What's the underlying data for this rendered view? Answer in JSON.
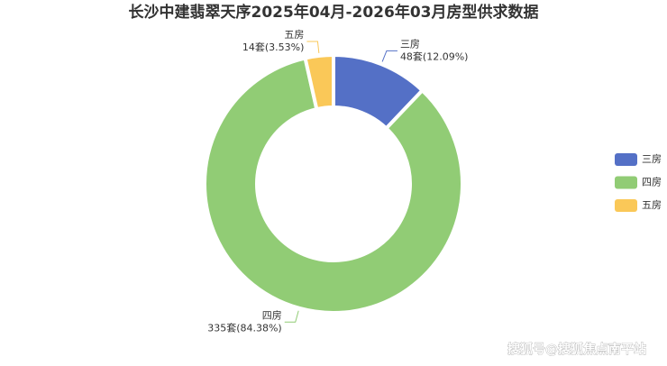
{
  "chart_data": {
    "type": "pie",
    "title": "长沙中建翡翠天序2025年04月-2026年03月房型供求数据",
    "categories": [
      "三房",
      "四房",
      "五房"
    ],
    "values": [
      48,
      335,
      14
    ],
    "value_labels": [
      "48套(12.09%)",
      "335套(84.38%)",
      "14套(3.53%)"
    ],
    "colors": [
      "#5470c6",
      "#91cc75",
      "#fac858"
    ],
    "legend": "right"
  },
  "watermark": "搜狐号@搜狐焦点南平站"
}
